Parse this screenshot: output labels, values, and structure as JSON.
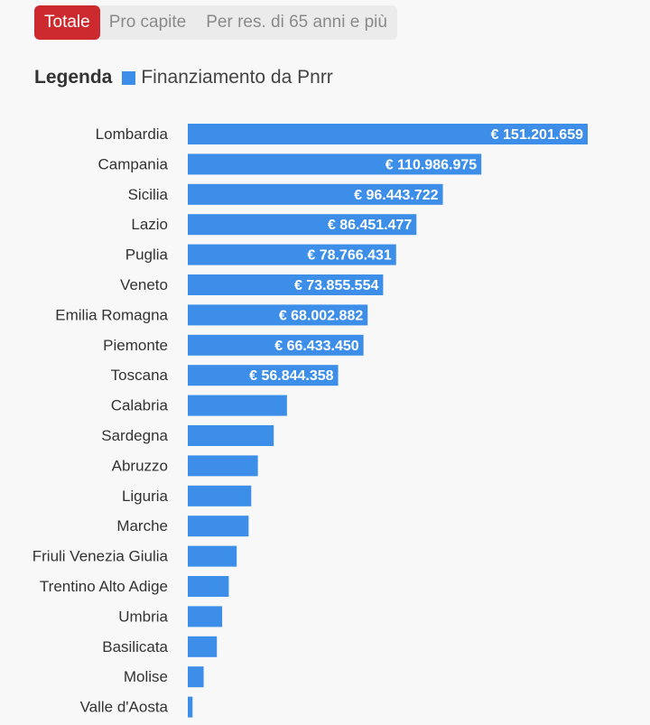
{
  "tabs": [
    {
      "label": "Totale",
      "active": true
    },
    {
      "label": "Pro capite",
      "active": false
    },
    {
      "label": "Per res. di 65 anni e più",
      "active": false
    }
  ],
  "legend": {
    "title": "Legenda",
    "series_label": "Finanziamento da Pnrr",
    "color": "#3c8ee8"
  },
  "chart_data": {
    "type": "bar",
    "orientation": "horizontal",
    "categories": [
      "Lombardia",
      "Campania",
      "Sicilia",
      "Lazio",
      "Puglia",
      "Veneto",
      "Emilia Romagna",
      "Piemonte",
      "Toscana",
      "Calabria",
      "Sardegna",
      "Abruzzo",
      "Liguria",
      "Marche",
      "Friuli Venezia Giulia",
      "Trentino Alto Adige",
      "Umbria",
      "Basilicata",
      "Molise",
      "Valle d'Aosta"
    ],
    "series": [
      {
        "name": "Finanziamento da Pnrr",
        "color": "#3c8ee8",
        "values": [
          151201659,
          110986975,
          96443722,
          86451477,
          78766431,
          73855554,
          68002882,
          66433450,
          56844358,
          37500000,
          32500000,
          26500000,
          24000000,
          23000000,
          18500000,
          15500000,
          13000000,
          11000000,
          6000000,
          1800000
        ],
        "labels": [
          "€ 151.201.659",
          "€ 110.986.975",
          "€ 96.443.722",
          "€ 86.451.477",
          "€ 78.766.431",
          "€ 73.855.554",
          "€ 68.002.882",
          "€ 66.433.450",
          "€ 56.844.358",
          "",
          "",
          "",
          "",
          "",
          "",
          "",
          "",
          "",
          "",
          ""
        ]
      }
    ],
    "xlim": [
      0,
      151201659
    ],
    "grid": false,
    "legend_position": "top-left"
  }
}
